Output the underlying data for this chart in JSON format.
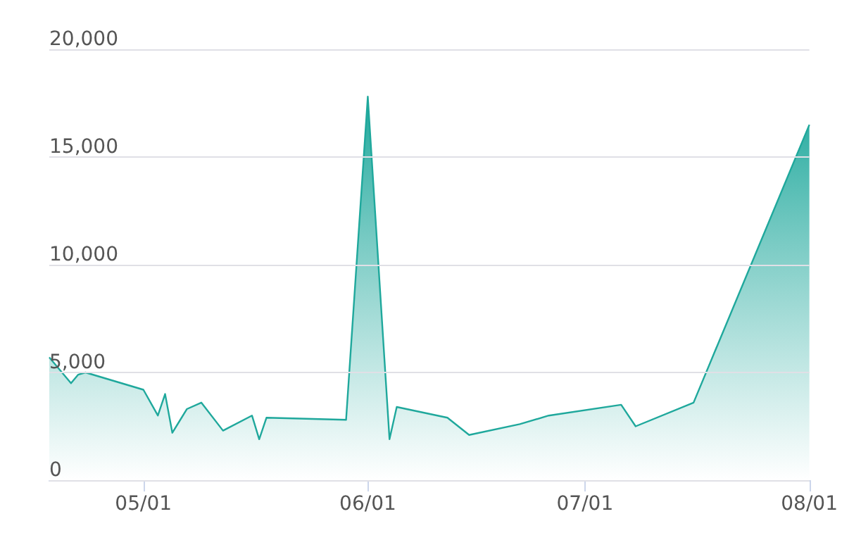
{
  "chart_data": {
    "type": "area",
    "color": "#1fa89c",
    "grid": "y",
    "marker": "none",
    "line_style": "solid",
    "x": [
      "--04-18",
      "--04-21",
      "--04-22",
      "--04-23",
      "--05-01",
      "--05-03",
      "--05-04",
      "--05-05",
      "--05-07",
      "--05-09",
      "--05-12",
      "--05-16",
      "--05-17",
      "--05-18",
      "--05-29",
      "--06-01",
      "--06-04",
      "--06-05",
      "--06-12",
      "--06-15",
      "--06-22",
      "--06-26",
      "--07-06",
      "--07-08",
      "--07-16",
      "--08-01"
    ],
    "values": [
      5700,
      4500,
      4900,
      5000,
      4200,
      3000,
      4000,
      2200,
      3300,
      3600,
      2300,
      3000,
      1900,
      2900,
      2800,
      17800,
      1900,
      3400,
      2900,
      2100,
      2600,
      3000,
      3500,
      2500,
      3600,
      16500
    ],
    "xlim": [
      "--04-18",
      "--08-01"
    ],
    "xticks": [
      {
        "value": "--05-01",
        "label": "05/01"
      },
      {
        "value": "--06-01",
        "label": "06/01"
      },
      {
        "value": "--07-01",
        "label": "07/01"
      },
      {
        "value": "--08-01",
        "label": "08/01"
      }
    ],
    "ylim": [
      0,
      20000
    ],
    "yticks": [
      {
        "value": 0,
        "label": "0"
      },
      {
        "value": 5000,
        "label": "5,000"
      },
      {
        "value": 10000,
        "label": "10,000"
      },
      {
        "value": 15000,
        "label": "15,000"
      },
      {
        "value": 20000,
        "label": "20,000"
      }
    ]
  }
}
